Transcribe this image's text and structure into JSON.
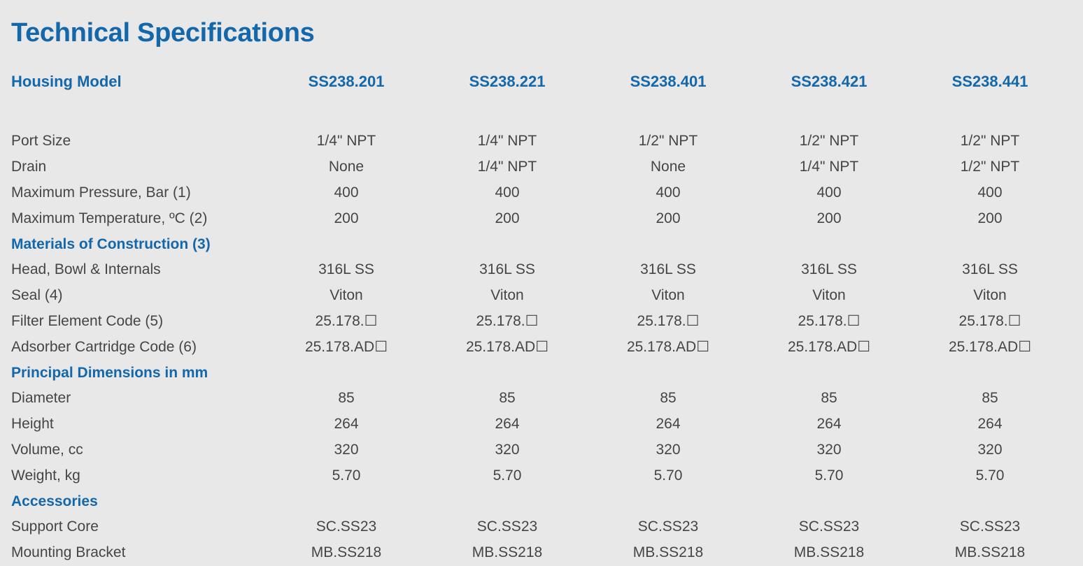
{
  "title": "Technical Specifications",
  "header": {
    "label": "Housing Model",
    "models": [
      "SS238.201",
      "SS238.221",
      "SS238.401",
      "SS238.421",
      "SS238.441"
    ]
  },
  "rows": [
    {
      "type": "data",
      "label": "Port Size",
      "values": [
        "1/4\" NPT",
        "1/4\" NPT",
        "1/2\" NPT",
        "1/2\" NPT",
        "1/2\" NPT"
      ]
    },
    {
      "type": "data",
      "label": "Drain",
      "values": [
        "None",
        "1/4\" NPT",
        "None",
        "1/4\" NPT",
        "1/2\" NPT"
      ]
    },
    {
      "type": "data",
      "label": "Maximum Pressure, Bar (1)",
      "values": [
        "400",
        "400",
        "400",
        "400",
        "400"
      ]
    },
    {
      "type": "data",
      "label": "Maximum Temperature, ºC (2)",
      "values": [
        "200",
        "200",
        "200",
        "200",
        "200"
      ]
    },
    {
      "type": "section",
      "label": "Materials of Construction (3)"
    },
    {
      "type": "data",
      "label": "Head, Bowl & Internals",
      "values": [
        "316L SS",
        "316L SS",
        "316L SS",
        "316L SS",
        "316L SS"
      ]
    },
    {
      "type": "data",
      "label": "Seal (4)",
      "values": [
        "Viton",
        "Viton",
        "Viton",
        "Viton",
        "Viton"
      ]
    },
    {
      "type": "data",
      "label": "Filter Element Code (5)",
      "values": [
        "25.178.☐",
        "25.178.☐",
        "25.178.☐",
        "25.178.☐",
        "25.178.☐"
      ]
    },
    {
      "type": "data",
      "label": "Adsorber Cartridge Code (6)",
      "values": [
        "25.178.AD☐",
        "25.178.AD☐",
        "25.178.AD☐",
        "25.178.AD☐",
        "25.178.AD☐"
      ]
    },
    {
      "type": "section",
      "label": "Principal Dimensions in mm"
    },
    {
      "type": "data",
      "label": "Diameter",
      "values": [
        "85",
        "85",
        "85",
        "85",
        "85"
      ]
    },
    {
      "type": "data",
      "label": "Height",
      "values": [
        "264",
        "264",
        "264",
        "264",
        "264"
      ]
    },
    {
      "type": "data",
      "label": "Volume, cc",
      "values": [
        "320",
        "320",
        "320",
        "320",
        "320"
      ]
    },
    {
      "type": "data",
      "label": "Weight, kg",
      "values": [
        "5.70",
        "5.70",
        "5.70",
        "5.70",
        "5.70"
      ]
    },
    {
      "type": "section",
      "label": "Accessories"
    },
    {
      "type": "data",
      "label": "Support Core",
      "values": [
        "SC.SS23",
        "SC.SS23",
        "SC.SS23",
        "SC.SS23",
        "SC.SS23"
      ]
    },
    {
      "type": "data",
      "label": "Mounting Bracket",
      "values": [
        "MB.SS218",
        "MB.SS218",
        "MB.SS218",
        "MB.SS218",
        "MB.SS218"
      ]
    }
  ],
  "colors": {
    "background": "#e8e8e8",
    "accent": "#1367ab",
    "text": "#454545"
  }
}
